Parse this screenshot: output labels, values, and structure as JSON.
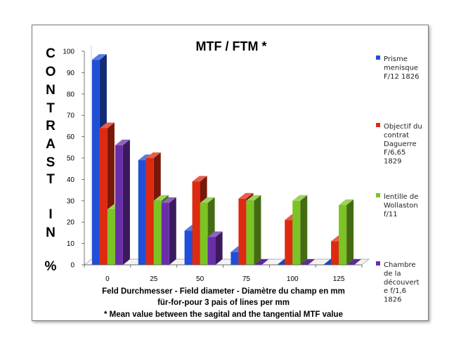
{
  "chart_data": {
    "type": "bar",
    "title": "MTF / FTM *",
    "ylabel_letters": [
      "C",
      "O",
      "N",
      "T",
      "R",
      "A",
      "S",
      "T",
      "I",
      "N",
      "%"
    ],
    "ylim": [
      0,
      100
    ],
    "yticks": [
      "100",
      "90",
      "80",
      "70",
      "60",
      "50",
      "40",
      "30",
      "20",
      "10",
      "0"
    ],
    "categories": [
      "0",
      "25",
      "50",
      "75",
      "100",
      "125"
    ],
    "series": [
      {
        "name": "Prisme menisque F/12 1826",
        "legend_lines": [
          "Prisme",
          "menisque",
          "F/12 1826"
        ],
        "color": "#1f4fd8",
        "values": [
          96,
          49,
          16,
          6,
          0,
          0
        ]
      },
      {
        "name": "Objectif du contrat Daguerre F/6,65 1829",
        "legend_lines": [
          "Objectif du",
          "contrat",
          "Daguerre",
          "F/6,65",
          "1829"
        ],
        "color": "#dd2a10",
        "values": [
          64,
          50,
          39,
          31,
          21,
          11
        ]
      },
      {
        "name": "lentille de Wollaston f/11",
        "legend_lines": [
          "lentille de",
          "Wollaston",
          "f/11"
        ],
        "color": "#7cc324",
        "values": [
          26,
          30,
          29,
          30,
          30,
          28
        ]
      },
      {
        "name": "Chambre de la découvert e f/1,6 1826",
        "legend_lines": [
          "Chambre",
          "de la",
          "découvert",
          "e f/1,6",
          "1826"
        ],
        "color": "#6a2fa8",
        "values": [
          56,
          29,
          13,
          0,
          0,
          0
        ]
      }
    ],
    "caption_lines": [
      "Feld Durchmesser - Field diameter - Diamètre du champ en mm",
      "für-for-pour 3 pais of lines per mm",
      "* Mean value between the sagital and the tangential MTF value"
    ],
    "grid": false,
    "legend_position": "right"
  }
}
